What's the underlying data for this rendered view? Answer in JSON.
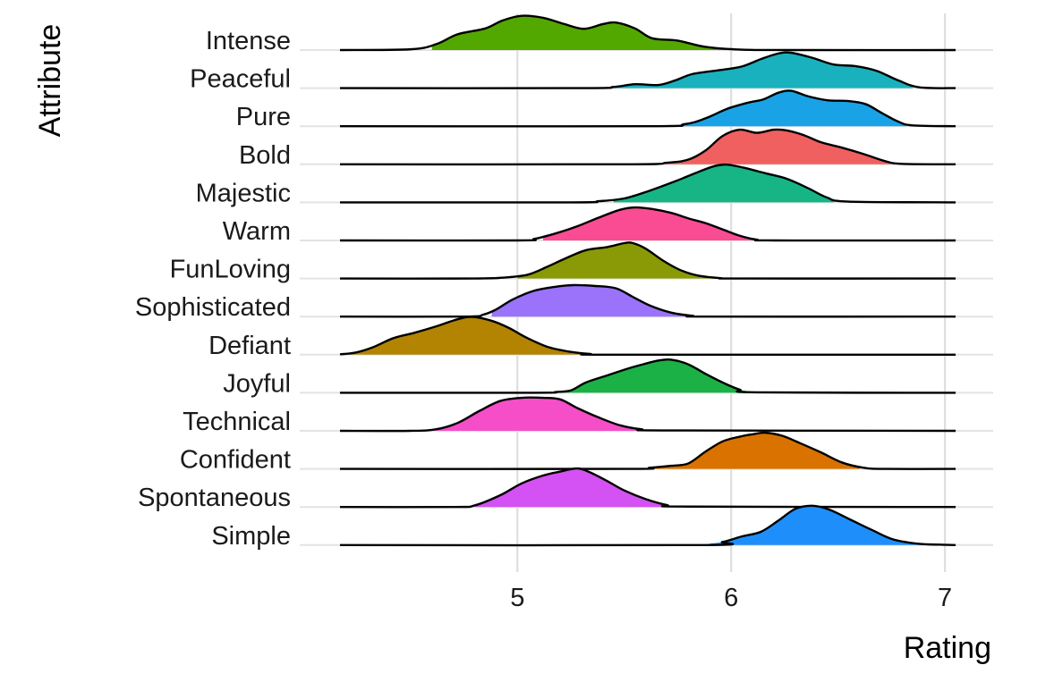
{
  "chart_data": {
    "type": "ridgeline",
    "title": "",
    "xlabel": "Rating",
    "ylabel": "Attribute",
    "xlim": [
      4.17,
      7.1
    ],
    "xticks": [
      5,
      6,
      7
    ],
    "xtick_labels": [
      "5",
      "6",
      "7"
    ],
    "grid": true,
    "legend": "none",
    "series": [
      {
        "name": "Intense",
        "color": "#53A800",
        "fill_range": [
          4.6,
          6.0
        ],
        "density": [
          [
            4.17,
            0
          ],
          [
            4.5,
            0.02
          ],
          [
            4.62,
            0.15
          ],
          [
            4.72,
            0.4
          ],
          [
            4.85,
            0.55
          ],
          [
            4.93,
            0.75
          ],
          [
            5.02,
            0.87
          ],
          [
            5.12,
            0.82
          ],
          [
            5.22,
            0.66
          ],
          [
            5.31,
            0.54
          ],
          [
            5.4,
            0.66
          ],
          [
            5.46,
            0.7
          ],
          [
            5.55,
            0.55
          ],
          [
            5.63,
            0.3
          ],
          [
            5.75,
            0.24
          ],
          [
            5.88,
            0.08
          ],
          [
            6.05,
            0.01
          ],
          [
            6.3,
            0
          ],
          [
            7.05,
            0
          ]
        ]
      },
      {
        "name": "Peaceful",
        "color": "#1AB1BE",
        "fill_range": [
          5.4,
          6.85
        ],
        "density": [
          [
            4.17,
            0
          ],
          [
            5.3,
            0
          ],
          [
            5.45,
            0.03
          ],
          [
            5.55,
            0.1
          ],
          [
            5.66,
            0.08
          ],
          [
            5.74,
            0.2
          ],
          [
            5.82,
            0.36
          ],
          [
            5.95,
            0.46
          ],
          [
            6.05,
            0.55
          ],
          [
            6.14,
            0.74
          ],
          [
            6.22,
            0.88
          ],
          [
            6.28,
            0.9
          ],
          [
            6.38,
            0.77
          ],
          [
            6.48,
            0.6
          ],
          [
            6.58,
            0.56
          ],
          [
            6.68,
            0.44
          ],
          [
            6.78,
            0.2
          ],
          [
            6.88,
            0.02
          ],
          [
            7.05,
            0
          ]
        ]
      },
      {
        "name": "Pure",
        "color": "#1AA2E6",
        "fill_range": [
          5.7,
          6.82
        ],
        "density": [
          [
            4.17,
            0
          ],
          [
            5.6,
            0
          ],
          [
            5.78,
            0.05
          ],
          [
            5.88,
            0.2
          ],
          [
            5.98,
            0.44
          ],
          [
            6.08,
            0.6
          ],
          [
            6.15,
            0.68
          ],
          [
            6.22,
            0.85
          ],
          [
            6.28,
            0.9
          ],
          [
            6.36,
            0.76
          ],
          [
            6.45,
            0.66
          ],
          [
            6.55,
            0.64
          ],
          [
            6.63,
            0.56
          ],
          [
            6.7,
            0.35
          ],
          [
            6.78,
            0.12
          ],
          [
            6.85,
            0.02
          ],
          [
            7.05,
            0
          ]
        ]
      },
      {
        "name": "Bold",
        "color": "#F06060",
        "fill_range": [
          5.55,
          6.75
        ],
        "density": [
          [
            4.17,
            0
          ],
          [
            5.5,
            0
          ],
          [
            5.7,
            0.04
          ],
          [
            5.8,
            0.12
          ],
          [
            5.88,
            0.35
          ],
          [
            5.96,
            0.72
          ],
          [
            6.04,
            0.88
          ],
          [
            6.12,
            0.8
          ],
          [
            6.2,
            0.88
          ],
          [
            6.26,
            0.86
          ],
          [
            6.34,
            0.74
          ],
          [
            6.42,
            0.56
          ],
          [
            6.52,
            0.42
          ],
          [
            6.62,
            0.26
          ],
          [
            6.72,
            0.08
          ],
          [
            6.8,
            0.01
          ],
          [
            7.05,
            0
          ]
        ]
      },
      {
        "name": "Majestic",
        "color": "#17B586",
        "fill_range": [
          5.45,
          6.48
        ],
        "density": [
          [
            4.17,
            0
          ],
          [
            5.25,
            0
          ],
          [
            5.38,
            0.03
          ],
          [
            5.5,
            0.1
          ],
          [
            5.62,
            0.3
          ],
          [
            5.74,
            0.54
          ],
          [
            5.84,
            0.76
          ],
          [
            5.92,
            0.92
          ],
          [
            5.98,
            0.96
          ],
          [
            6.06,
            0.88
          ],
          [
            6.16,
            0.74
          ],
          [
            6.26,
            0.6
          ],
          [
            6.36,
            0.36
          ],
          [
            6.45,
            0.12
          ],
          [
            6.55,
            0.02
          ],
          [
            7.05,
            0
          ]
        ]
      },
      {
        "name": "Warm",
        "color": "#FA4C92",
        "fill_range": [
          5.12,
          6.12
        ],
        "density": [
          [
            4.17,
            0
          ],
          [
            5.0,
            0
          ],
          [
            5.08,
            0.04
          ],
          [
            5.18,
            0.18
          ],
          [
            5.28,
            0.36
          ],
          [
            5.38,
            0.58
          ],
          [
            5.48,
            0.78
          ],
          [
            5.55,
            0.84
          ],
          [
            5.63,
            0.8
          ],
          [
            5.72,
            0.7
          ],
          [
            5.8,
            0.56
          ],
          [
            5.88,
            0.44
          ],
          [
            5.96,
            0.28
          ],
          [
            6.04,
            0.12
          ],
          [
            6.12,
            0.02
          ],
          [
            6.2,
            0
          ],
          [
            7.05,
            0
          ]
        ]
      },
      {
        "name": "FunLoving",
        "color": "#8A9A07",
        "fill_range": [
          5.0,
          5.98
        ],
        "density": [
          [
            4.17,
            0
          ],
          [
            4.8,
            0
          ],
          [
            4.95,
            0.03
          ],
          [
            5.05,
            0.1
          ],
          [
            5.14,
            0.3
          ],
          [
            5.22,
            0.5
          ],
          [
            5.32,
            0.72
          ],
          [
            5.42,
            0.8
          ],
          [
            5.5,
            0.9
          ],
          [
            5.54,
            0.9
          ],
          [
            5.6,
            0.76
          ],
          [
            5.68,
            0.46
          ],
          [
            5.76,
            0.22
          ],
          [
            5.84,
            0.08
          ],
          [
            5.95,
            0.01
          ],
          [
            6.05,
            0
          ],
          [
            7.05,
            0
          ]
        ]
      },
      {
        "name": "Sophisticated",
        "color": "#9A73FA",
        "fill_range": [
          4.88,
          5.8
        ],
        "density": [
          [
            4.17,
            0
          ],
          [
            4.75,
            0
          ],
          [
            4.84,
            0.05
          ],
          [
            4.9,
            0.18
          ],
          [
            4.98,
            0.44
          ],
          [
            5.08,
            0.66
          ],
          [
            5.18,
            0.76
          ],
          [
            5.26,
            0.8
          ],
          [
            5.36,
            0.78
          ],
          [
            5.46,
            0.72
          ],
          [
            5.54,
            0.5
          ],
          [
            5.62,
            0.28
          ],
          [
            5.72,
            0.1
          ],
          [
            5.82,
            0.02
          ],
          [
            5.9,
            0
          ],
          [
            7.05,
            0
          ]
        ]
      },
      {
        "name": "Defiant",
        "color": "#B38302",
        "fill_range": [
          4.2,
          5.35
        ],
        "density": [
          [
            4.17,
            0.01
          ],
          [
            4.24,
            0.05
          ],
          [
            4.32,
            0.18
          ],
          [
            4.42,
            0.42
          ],
          [
            4.52,
            0.56
          ],
          [
            4.62,
            0.72
          ],
          [
            4.72,
            0.9
          ],
          [
            4.79,
            0.96
          ],
          [
            4.88,
            0.86
          ],
          [
            4.96,
            0.68
          ],
          [
            5.04,
            0.44
          ],
          [
            5.14,
            0.2
          ],
          [
            5.24,
            0.08
          ],
          [
            5.34,
            0.02
          ],
          [
            5.45,
            0
          ],
          [
            7.05,
            0
          ]
        ]
      },
      {
        "name": "Joyful",
        "color": "#1BB146",
        "fill_range": [
          5.2,
          6.1
        ],
        "density": [
          [
            4.17,
            0
          ],
          [
            5.08,
            0
          ],
          [
            5.18,
            0.02
          ],
          [
            5.25,
            0.06
          ],
          [
            5.32,
            0.26
          ],
          [
            5.42,
            0.44
          ],
          [
            5.52,
            0.62
          ],
          [
            5.6,
            0.74
          ],
          [
            5.66,
            0.82
          ],
          [
            5.72,
            0.84
          ],
          [
            5.8,
            0.72
          ],
          [
            5.88,
            0.48
          ],
          [
            5.96,
            0.26
          ],
          [
            6.04,
            0.08
          ],
          [
            6.12,
            0.01
          ],
          [
            7.05,
            0
          ]
        ]
      },
      {
        "name": "Technical",
        "color": "#F54EC8",
        "fill_range": [
          4.6,
          5.65
        ],
        "density": [
          [
            4.17,
            0
          ],
          [
            4.5,
            0
          ],
          [
            4.62,
            0.04
          ],
          [
            4.72,
            0.2
          ],
          [
            4.82,
            0.5
          ],
          [
            4.92,
            0.76
          ],
          [
            5.02,
            0.84
          ],
          [
            5.12,
            0.84
          ],
          [
            5.2,
            0.8
          ],
          [
            5.28,
            0.58
          ],
          [
            5.38,
            0.34
          ],
          [
            5.48,
            0.14
          ],
          [
            5.58,
            0.04
          ],
          [
            5.7,
            0.01
          ],
          [
            7.05,
            0
          ]
        ]
      },
      {
        "name": "Confident",
        "color": "#DA7200",
        "fill_range": [
          5.5,
          6.6
        ],
        "density": [
          [
            4.17,
            0
          ],
          [
            5.5,
            0
          ],
          [
            5.62,
            0.03
          ],
          [
            5.72,
            0.08
          ],
          [
            5.8,
            0.14
          ],
          [
            5.88,
            0.44
          ],
          [
            5.96,
            0.7
          ],
          [
            6.04,
            0.82
          ],
          [
            6.1,
            0.88
          ],
          [
            6.16,
            0.92
          ],
          [
            6.24,
            0.84
          ],
          [
            6.32,
            0.66
          ],
          [
            6.42,
            0.42
          ],
          [
            6.52,
            0.16
          ],
          [
            6.62,
            0.03
          ],
          [
            6.72,
            0
          ],
          [
            7.05,
            0
          ]
        ]
      },
      {
        "name": "Spontaneous",
        "color": "#D451F3",
        "fill_range": [
          4.8,
          5.7
        ],
        "density": [
          [
            4.17,
            0
          ],
          [
            4.7,
            0
          ],
          [
            4.8,
            0.04
          ],
          [
            4.92,
            0.3
          ],
          [
            5.02,
            0.6
          ],
          [
            5.12,
            0.8
          ],
          [
            5.2,
            0.9
          ],
          [
            5.28,
            0.98
          ],
          [
            5.34,
            0.88
          ],
          [
            5.42,
            0.66
          ],
          [
            5.5,
            0.42
          ],
          [
            5.6,
            0.2
          ],
          [
            5.7,
            0.05
          ],
          [
            5.8,
            0.01
          ],
          [
            7.05,
            0
          ]
        ]
      },
      {
        "name": "Simple",
        "color": "#1E8FFA",
        "fill_range": [
          5.9,
          6.95
        ],
        "density": [
          [
            4.17,
            0
          ],
          [
            5.85,
            0
          ],
          [
            5.96,
            0.08
          ],
          [
            6.05,
            0.22
          ],
          [
            6.14,
            0.34
          ],
          [
            6.22,
            0.62
          ],
          [
            6.3,
            0.92
          ],
          [
            6.38,
            1.0
          ],
          [
            6.46,
            0.9
          ],
          [
            6.56,
            0.64
          ],
          [
            6.66,
            0.38
          ],
          [
            6.76,
            0.14
          ],
          [
            6.88,
            0.03
          ],
          [
            6.98,
            0.01
          ],
          [
            7.05,
            0
          ]
        ]
      }
    ]
  }
}
